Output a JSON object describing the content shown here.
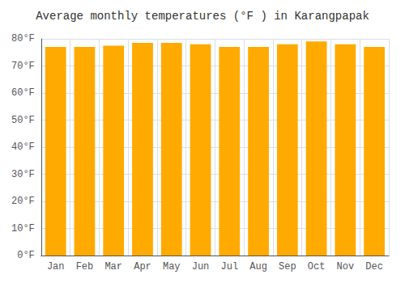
{
  "chart_data": {
    "type": "bar",
    "title": "Average monthly temperatures (°F ) in Karangpapak",
    "categories": [
      "Jan",
      "Feb",
      "Mar",
      "Apr",
      "May",
      "Jun",
      "Jul",
      "Aug",
      "Sep",
      "Oct",
      "Nov",
      "Dec"
    ],
    "values": [
      77,
      77,
      77.5,
      78.5,
      78.5,
      78,
      77,
      77,
      78,
      79,
      78,
      77
    ],
    "color": "#FFAA00",
    "ylim": [
      0,
      80
    ],
    "yticks": [
      {
        "value": 0,
        "label": "0°F"
      },
      {
        "value": 10,
        "label": "10°F"
      },
      {
        "value": 20,
        "label": "20°F"
      },
      {
        "value": 30,
        "label": "30°F"
      },
      {
        "value": 40,
        "label": "40°F"
      },
      {
        "value": 50,
        "label": "50°F"
      },
      {
        "value": 60,
        "label": "60°F"
      },
      {
        "value": 70,
        "label": "70°F"
      },
      {
        "value": 80,
        "label": "80°F"
      }
    ],
    "grid": true
  }
}
